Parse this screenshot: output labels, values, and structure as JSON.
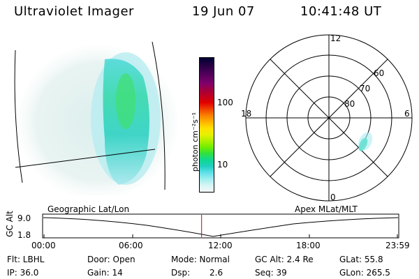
{
  "header": {
    "instrument": "Ultraviolet Imager",
    "date": "19 Jun 07",
    "time": "10:41:48 UT"
  },
  "colorbar": {
    "label": "photon cm⁻²s⁻¹",
    "ticks": [
      "100",
      "10"
    ],
    "colors": [
      "#000033",
      "#200040",
      "#400050",
      "#600060",
      "#80006a",
      "#a00040",
      "#c00020",
      "#e00000",
      "#f04000",
      "#f88000",
      "#ffb000",
      "#ffe000",
      "#e8f000",
      "#b0f000",
      "#70ee00",
      "#30e040",
      "#10d890",
      "#20d0c0",
      "#60e0e8",
      "#a0eef0",
      "#d8f4f4",
      "#f2f8f8"
    ]
  },
  "polar_plot": {
    "mlt_labels": {
      "top": "12",
      "left": "18",
      "right": "6",
      "bottom": "0"
    },
    "lat_labels": [
      "60",
      "70",
      "80"
    ]
  },
  "timeline": {
    "ylabel": "GC Alt",
    "ytick_top": "9.0",
    "ytick_bottom": "1.8",
    "left_label": "Geographic Lat/Lon",
    "right_label": "Apex MLat/MLT",
    "xticks": [
      "00:00",
      "06:00",
      "12:00",
      "18:00",
      "23:59"
    ],
    "current_time_fraction": 0.446,
    "marker_color": "#cc0000"
  },
  "info": {
    "filter": "Flt: LBHL",
    "door": "Door: Open",
    "mode": "Mode: Normal",
    "gc_alt": "GC Alt: 2.4 Re",
    "glat": "GLat:  55.8",
    "ip": "IP: 36.0",
    "gain": "Gain: 14",
    "dsp_label": "Dsp:",
    "dsp_value": "2.6",
    "seq": "Seq: 39",
    "glon": "GLon: 265.5"
  }
}
